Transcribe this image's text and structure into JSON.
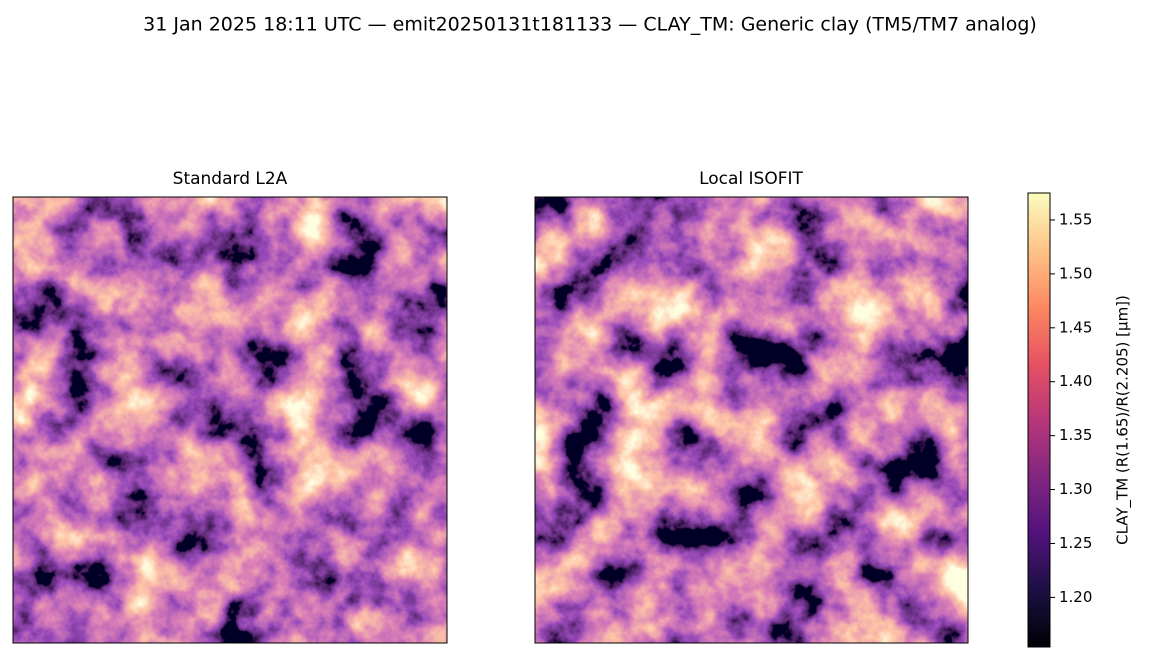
{
  "chart_data": {
    "type": "image",
    "title": "31 Jan 2025 18:11 UTC — emit20250131t181133 — CLAY_TM: Generic clay (TM5/TM7 analog)",
    "panels": [
      {
        "title": "Standard L2A"
      },
      {
        "title": "Local ISOFIT"
      }
    ],
    "colormap": "magma",
    "ylabel": "CLAY_TM  (R(1.65)/R(2.205)  [μm])",
    "ylim": [
      1.154,
      1.575
    ],
    "yticks": [
      {
        "value": 1.2,
        "label": "1.20"
      },
      {
        "value": 1.25,
        "label": "1.25"
      },
      {
        "value": 1.3,
        "label": "1.30"
      },
      {
        "value": 1.35,
        "label": "1.35"
      },
      {
        "value": 1.4,
        "label": "1.40"
      },
      {
        "value": 1.45,
        "label": "1.45"
      },
      {
        "value": 1.5,
        "label": "1.50"
      },
      {
        "value": 1.55,
        "label": "1.55"
      }
    ]
  }
}
